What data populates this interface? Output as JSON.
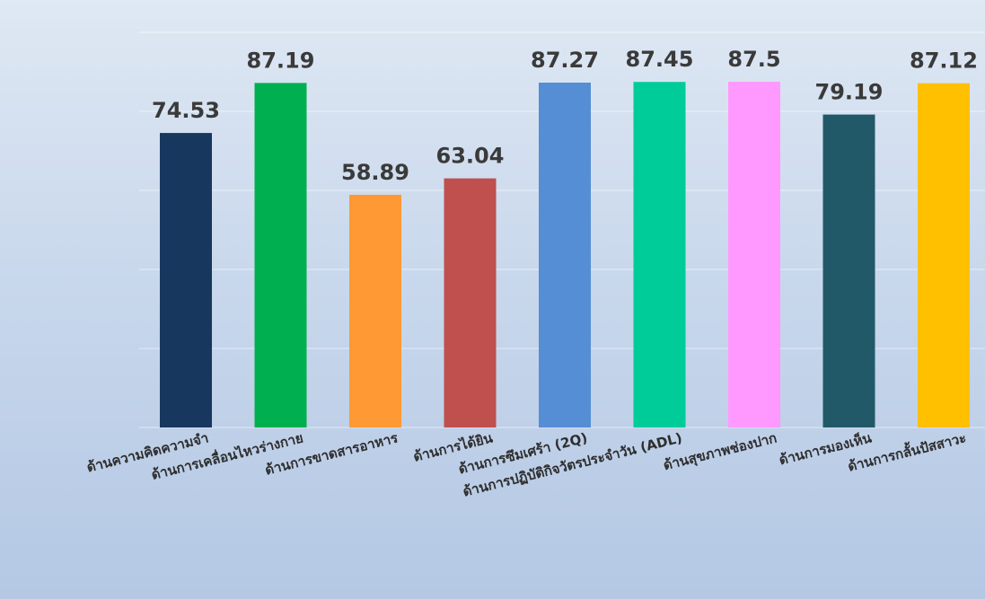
{
  "chart_data": {
    "type": "bar",
    "categories": [
      "ด้านความคิดความจำ",
      "ด้านการเคลื่อนไหวร่างกาย",
      "ด้านการขาดสารอาหาร",
      "ด้านการได้ยิน",
      "ด้านการซึมเศร้า (2Q)",
      "ด้านการปฏิบัติกิจวัตรประจำวัน (ADL)",
      "ด้านสุขภาพช่องปาก",
      "ด้านการมองเห็น",
      "ด้านการกลั้นปัสสาวะ"
    ],
    "values": [
      74.53,
      87.19,
      58.89,
      63.04,
      87.27,
      87.45,
      87.5,
      79.19,
      87.12
    ],
    "value_labels": [
      "74.53",
      "87.19",
      "58.89",
      "63.04",
      "87.27",
      "87.45",
      "87.5",
      "79.19",
      "87.12"
    ],
    "colors": [
      "#17375e",
      "#00b050",
      "#ff9933",
      "#c0504d",
      "#558ed5",
      "#00cc99",
      "#ff99ff",
      "#215968",
      "#ffc000"
    ],
    "ylim": [
      0,
      100
    ],
    "grid": true,
    "legend": "none",
    "title": "",
    "xlabel": "",
    "ylabel": ""
  }
}
